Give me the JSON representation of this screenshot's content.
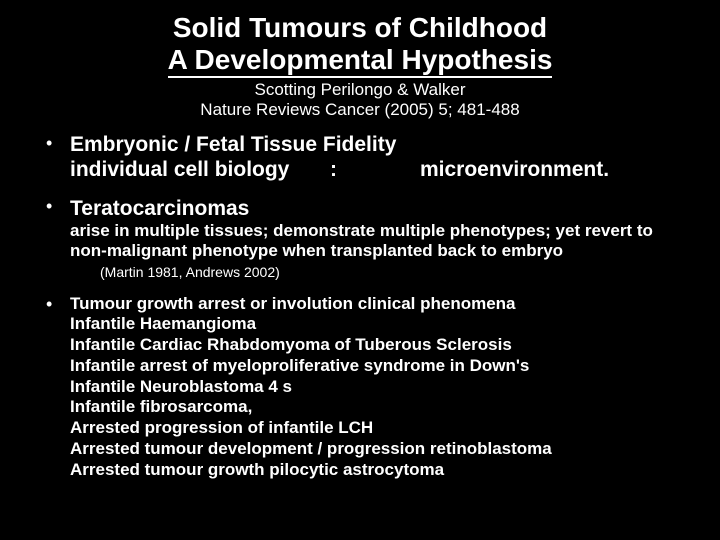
{
  "colors": {
    "background": "#000000",
    "text": "#ffffff"
  },
  "title": {
    "line1": "Solid Tumours of Childhood",
    "line2": "A Developmental Hypothesis",
    "authors": "Scotting Perilongo & Walker",
    "citation": "Nature Reviews Cancer (2005) 5; 481-488",
    "fontsize_title": 28,
    "fontsize_sub": 17
  },
  "bullet1": {
    "heading": "Embryonic / Fetal Tissue Fidelity",
    "left": "individual cell biology",
    "colon": ":",
    "right": "microenvironment.",
    "fontsize": 21
  },
  "bullet2": {
    "heading": "Teratocarcinomas",
    "body": "arise in multiple tissues; demonstrate multiple phenotypes; yet revert to non-malignant phenotype when transplanted back to embryo",
    "reference": "(Martin 1981, Andrews 2002)",
    "fontsize_head": 21,
    "fontsize_body": 17,
    "fontsize_ref": 14
  },
  "bullet3": {
    "heading": "Tumour growth arrest or involution clinical phenomena",
    "items": [
      "Infantile Haemangioma",
      "Infantile Cardiac Rhabdomyoma of Tuberous Sclerosis",
      "Infantile arrest of myeloproliferative syndrome in Down's",
      "Infantile Neuroblastoma 4 s",
      "Infantile fibrosarcoma,",
      "Arrested progression of infantile LCH",
      "Arrested tumour development / progression retinoblastoma",
      "Arrested tumour growth pilocytic astrocytoma"
    ],
    "fontsize": 17
  }
}
